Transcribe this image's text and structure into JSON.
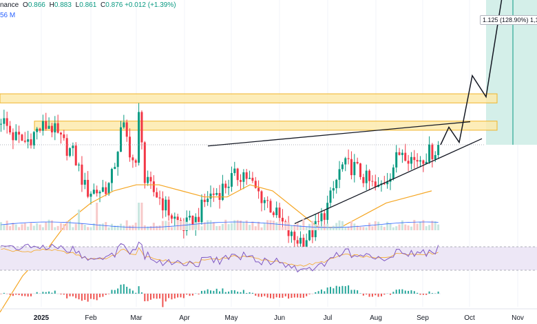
{
  "legend": {
    "symbol_fragment": "nance",
    "open_label": "O",
    "open": "0.866",
    "high_label": "H",
    "high": "0.883",
    "low_label": "L",
    "low": "0.861",
    "close_label": "C",
    "close": "0.876",
    "change": "+0.012 (+1.39%)",
    "volume_fragment": "56 M"
  },
  "target_label": "1.125 (128.90%) 1,1",
  "colors": {
    "up": "#089981",
    "down": "#f23645",
    "ma": "#f5a623",
    "volume": "#f7c9c9",
    "volume_ma": "#2962ff",
    "rsi": "#7e57c2",
    "rsi_band": "#ede7f6",
    "resistance_fill": "#fde9a8",
    "resistance_border": "#f0b429",
    "target_fill": "#d4efe9",
    "target_line": "#089981"
  },
  "chart_data": {
    "type": "candlestick",
    "x_tick_labels": [
      "2025",
      "Feb",
      "Mar",
      "Apr",
      "May",
      "Jun",
      "Jul",
      "Aug",
      "Sep",
      "Oct",
      "Nov"
    ],
    "price_range": [
      0.47,
      1.18
    ],
    "last_close": 0.876,
    "target_price": 1.125,
    "target_percent": "128.90%",
    "resistance_zones": [
      [
        0.945,
        0.96
      ],
      [
        0.9,
        0.915
      ]
    ],
    "ma_series_approx": [
      0.6,
      0.66,
      0.7,
      0.75,
      0.78,
      0.8,
      0.81,
      0.81,
      0.8,
      0.79,
      0.79,
      0.81,
      0.8,
      0.77,
      0.74,
      0.74,
      0.76,
      0.78,
      0.79,
      0.8
    ],
    "close_series_approx": [
      0.92,
      0.89,
      0.88,
      0.9,
      0.91,
      0.88,
      0.86,
      0.8,
      0.8,
      0.81,
      0.91,
      0.84,
      0.81,
      0.79,
      0.76,
      0.74,
      0.75,
      0.79,
      0.8,
      0.82,
      0.83,
      0.8,
      0.78,
      0.75,
      0.72,
      0.72,
      0.74,
      0.78,
      0.84,
      0.84,
      0.82,
      0.8,
      0.83,
      0.87,
      0.85,
      0.86,
      0.87
    ],
    "projected_path": [
      0.876,
      0.905,
      0.88,
      0.99,
      0.955,
      1.125
    ],
    "rsi_band": [
      30,
      70
    ]
  }
}
